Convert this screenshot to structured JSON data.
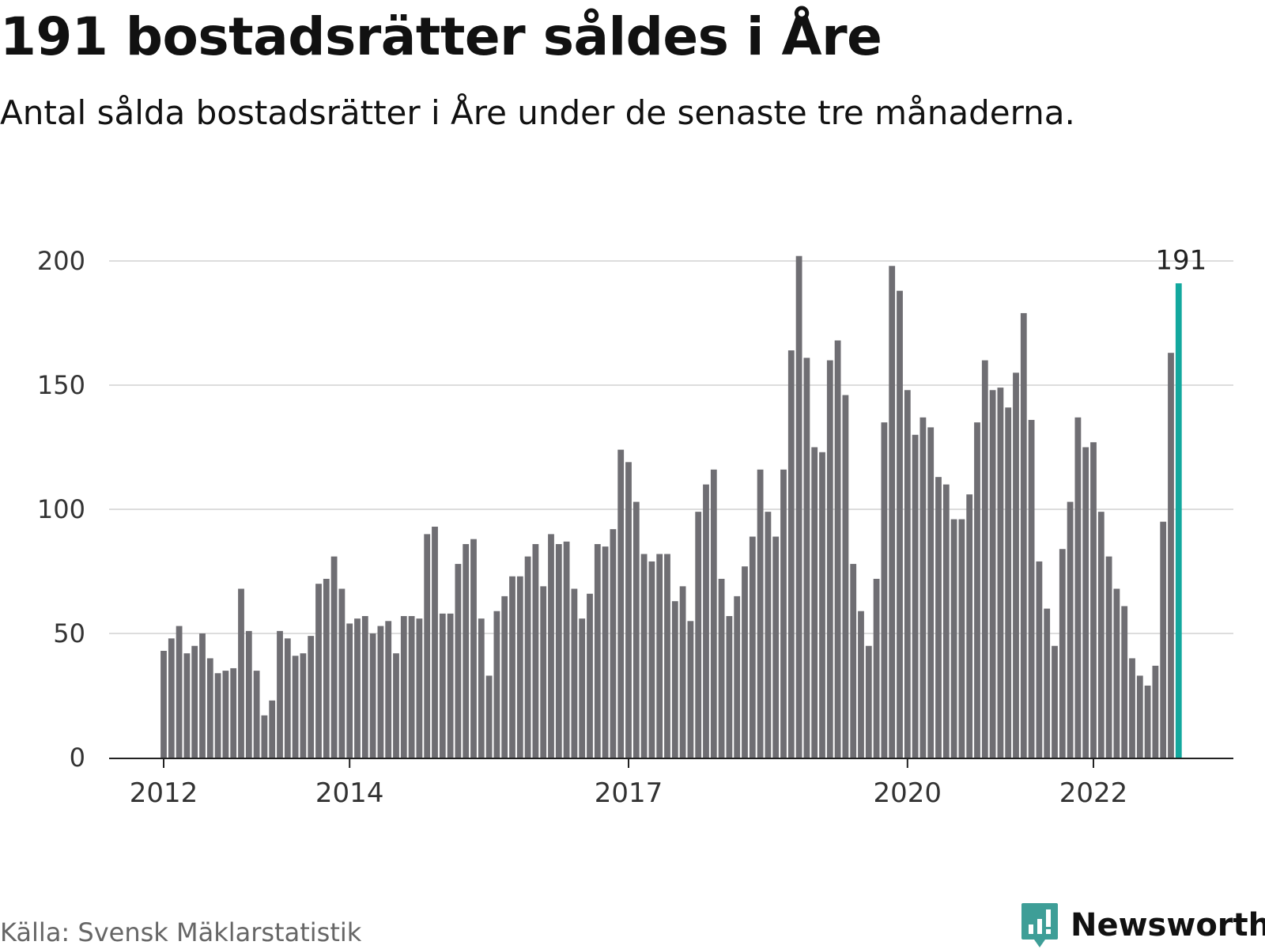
{
  "title": "191 bostadsrätter såldes i Åre",
  "subtitle": "Antal sålda bostadsrätter i Åre under de senaste tre månaderna.",
  "source": "Källa: Svensk Mäklarstatistik",
  "logo_text": "Newsworthy",
  "colors": {
    "bar": "#6f6e73",
    "highlight": "#13a89e",
    "grid": "#dddddd",
    "axis": "#222222",
    "logo": "#3e9e97"
  },
  "chart_data": {
    "type": "bar",
    "ylim": [
      0,
      200
    ],
    "yticks": [
      0,
      50,
      100,
      150,
      200
    ],
    "xticks": [
      {
        "label": "2012",
        "index": 0
      },
      {
        "label": "2014",
        "index": 24
      },
      {
        "label": "2017",
        "index": 60
      },
      {
        "label": "2020",
        "index": 96
      },
      {
        "label": "2022",
        "index": 120
      }
    ],
    "grid": true,
    "highlight_label": "191",
    "values": [
      43,
      48,
      53,
      42,
      45,
      50,
      40,
      34,
      35,
      36,
      68,
      51,
      35,
      17,
      23,
      51,
      48,
      41,
      42,
      49,
      70,
      72,
      81,
      68,
      54,
      56,
      57,
      50,
      53,
      55,
      42,
      57,
      57,
      56,
      90,
      93,
      58,
      58,
      78,
      86,
      88,
      56,
      33,
      59,
      65,
      73,
      73,
      81,
      86,
      69,
      90,
      86,
      87,
      68,
      56,
      66,
      86,
      85,
      92,
      124,
      119,
      103,
      82,
      79,
      82,
      82,
      63,
      69,
      55,
      99,
      110,
      116,
      72,
      57,
      65,
      77,
      89,
      116,
      99,
      89,
      116,
      164,
      202,
      161,
      125,
      123,
      160,
      168,
      146,
      78,
      59,
      45,
      72,
      135,
      198,
      188,
      148,
      130,
      137,
      133,
      113,
      110,
      96,
      96,
      106,
      135,
      160,
      148,
      149,
      141,
      155,
      179,
      136,
      79,
      60,
      45,
      84,
      103,
      137,
      125,
      127,
      99,
      81,
      68,
      61,
      40,
      33,
      29,
      37,
      95,
      163,
      191
    ]
  }
}
